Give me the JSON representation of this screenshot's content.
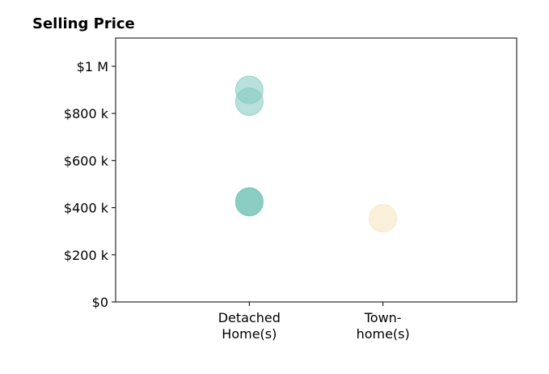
{
  "chart_data": {
    "type": "scatter",
    "title": "Selling Price",
    "xlabel": "",
    "ylabel": "",
    "categories": [
      [
        "Detached",
        "Home(s)"
      ],
      [
        "Town-",
        "home(s)"
      ]
    ],
    "xlim": [
      -1,
      2
    ],
    "ylim": [
      0,
      1120000
    ],
    "yticks": [
      0,
      200000,
      400000,
      600000,
      800000,
      1000000
    ],
    "ytick_labels": [
      "$0",
      "$200 k",
      "$400 k",
      "$600 k",
      "$800 k",
      "$1 M"
    ],
    "grid": false,
    "series": [
      {
        "color": "#80c8bd",
        "points": [
          {
            "category": 0,
            "y": 900000
          },
          {
            "category": 0,
            "y": 850000
          },
          {
            "category": 0,
            "y": 427000
          },
          {
            "category": 0,
            "y": 425000
          },
          {
            "category": 0,
            "y": 423000
          }
        ]
      },
      {
        "color": "#f5e3bb",
        "points": [
          {
            "category": 1,
            "y": 355000
          }
        ]
      }
    ]
  }
}
